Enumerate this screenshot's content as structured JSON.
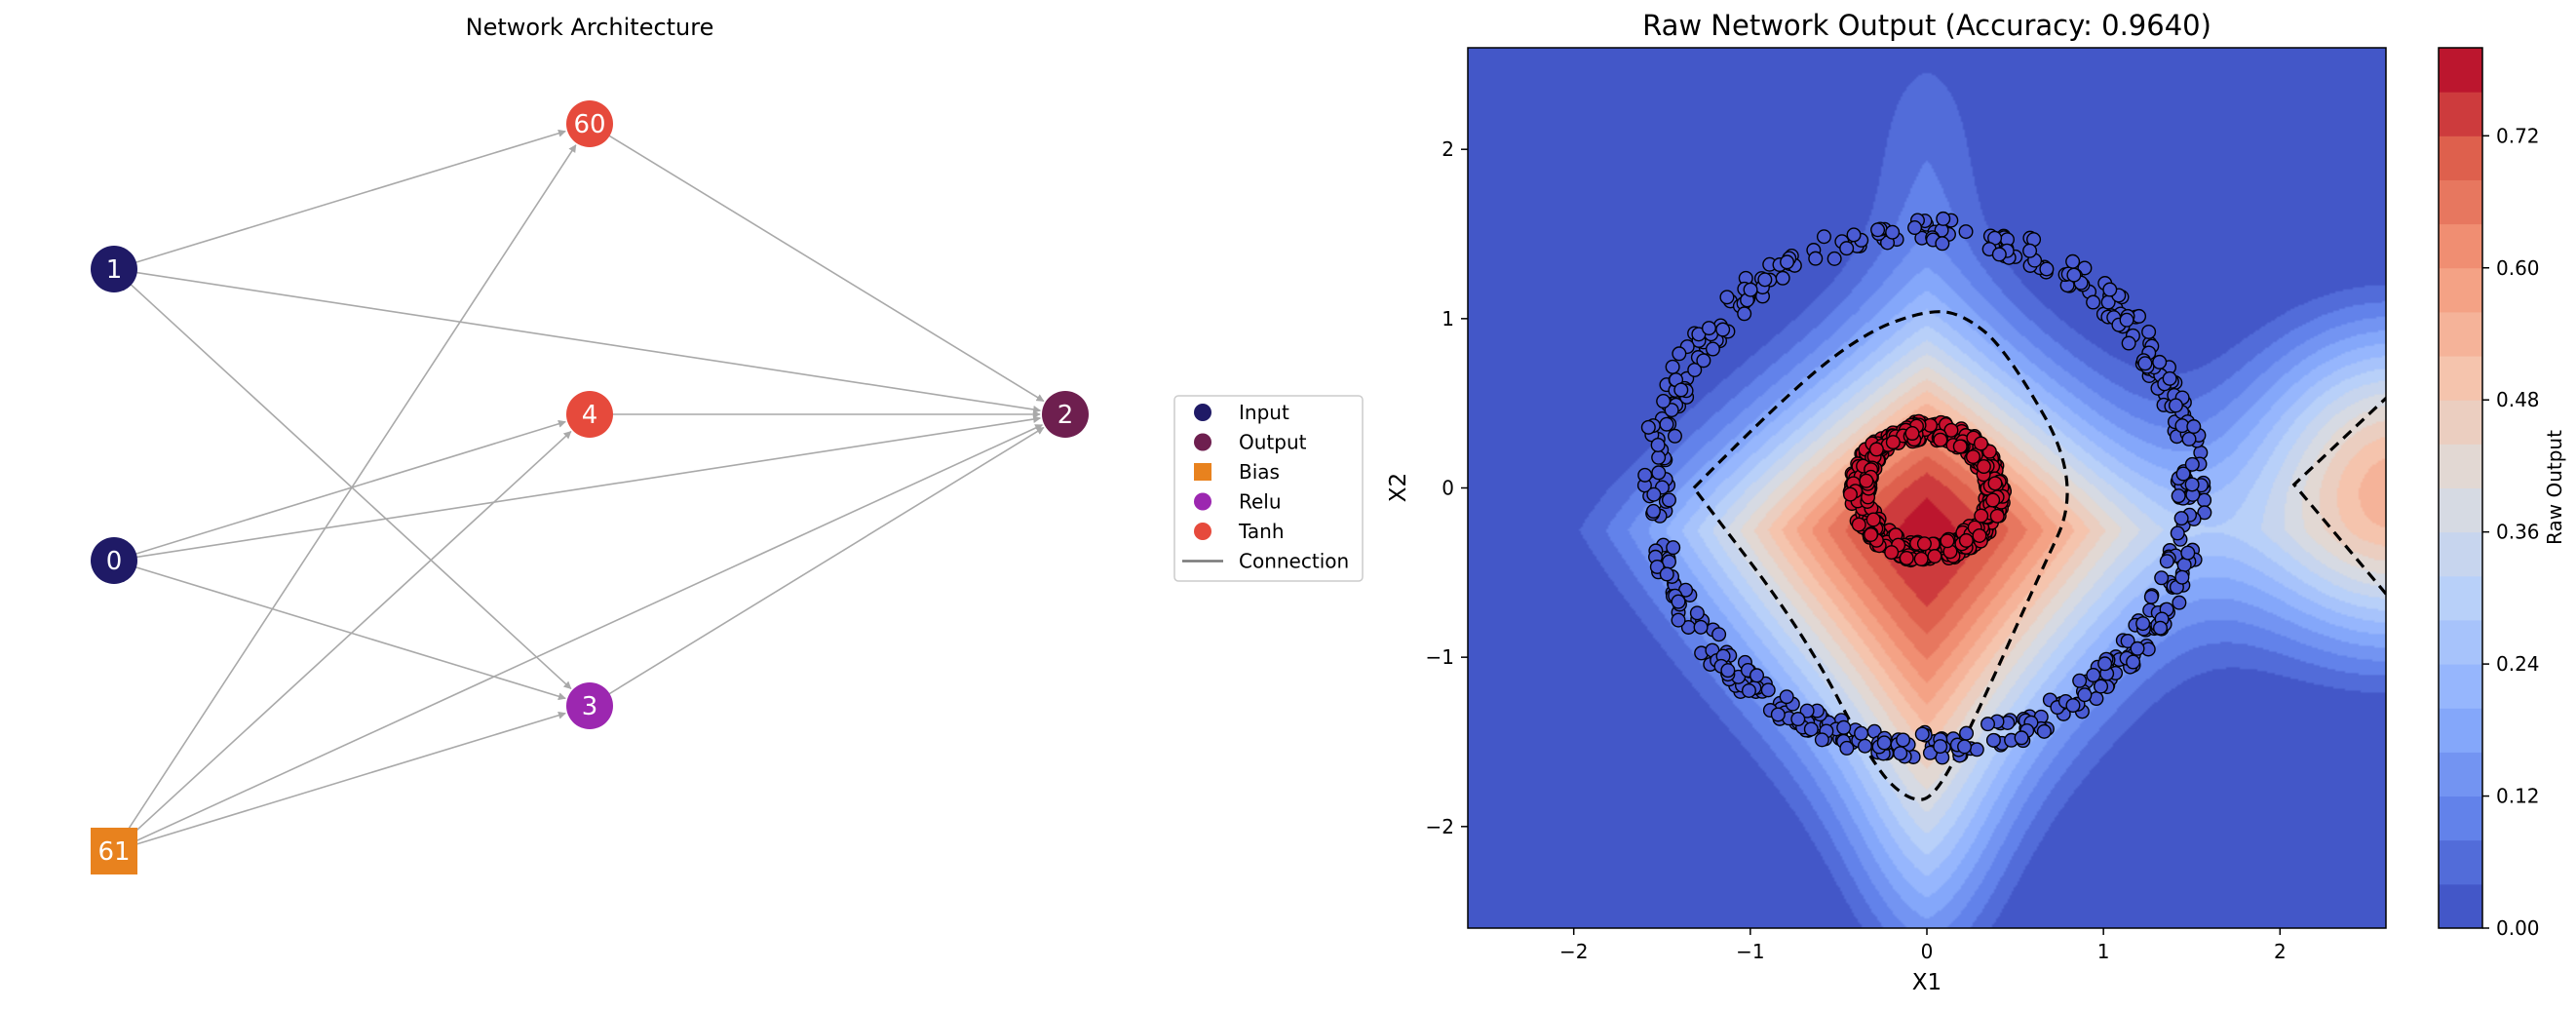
{
  "network": {
    "title": "Network Architecture",
    "colors": {
      "input": "#1f1a66",
      "output": "#6e1f4f",
      "bias": "#e8821e",
      "relu": "#9c27b0",
      "tanh": "#e64a3c",
      "connection": "#a9a9a9"
    },
    "nodes": [
      {
        "id": "1",
        "label": "1",
        "type": "input"
      },
      {
        "id": "0",
        "label": "0",
        "type": "input"
      },
      {
        "id": "61",
        "label": "61",
        "type": "bias"
      },
      {
        "id": "60",
        "label": "60",
        "type": "tanh"
      },
      {
        "id": "4",
        "label": "4",
        "type": "tanh"
      },
      {
        "id": "3",
        "label": "3",
        "type": "relu"
      },
      {
        "id": "2",
        "label": "2",
        "type": "output"
      }
    ],
    "edges": [
      [
        "1",
        "60"
      ],
      [
        "1",
        "2"
      ],
      [
        "1",
        "3"
      ],
      [
        "0",
        "4"
      ],
      [
        "0",
        "2"
      ],
      [
        "0",
        "3"
      ],
      [
        "61",
        "60"
      ],
      [
        "61",
        "4"
      ],
      [
        "61",
        "3"
      ],
      [
        "61",
        "2"
      ],
      [
        "60",
        "2"
      ],
      [
        "4",
        "2"
      ],
      [
        "3",
        "2"
      ]
    ],
    "legend": {
      "items": [
        {
          "label": "Input",
          "marker": "circle",
          "type": "input"
        },
        {
          "label": "Output",
          "marker": "circle",
          "type": "output"
        },
        {
          "label": "Bias",
          "marker": "square",
          "type": "bias"
        },
        {
          "label": "Relu",
          "marker": "circle",
          "type": "relu"
        },
        {
          "label": "Tanh",
          "marker": "circle",
          "type": "tanh"
        },
        {
          "label": "Connection",
          "marker": "line",
          "type": "connection"
        }
      ]
    }
  },
  "plot": {
    "title": "Raw Network Output (Accuracy: 0.9640)",
    "xlabel": "X1",
    "ylabel": "X2",
    "xlim": [
      -2.6,
      2.6
    ],
    "ylim": [
      -2.6,
      2.6
    ],
    "xticks": [
      -2,
      -1,
      0,
      1,
      2
    ],
    "yticks": [
      -2,
      -1,
      0,
      1,
      2
    ],
    "class_colors": {
      "outer": "#4a5bd4",
      "inner": "#c8102e"
    },
    "decision_boundary": {
      "style": "dashed",
      "color": "#000000"
    },
    "colorbar": {
      "label": "Raw Output",
      "ticks": [
        "0.00",
        "0.12",
        "0.24",
        "0.36",
        "0.48",
        "0.60",
        "0.72"
      ],
      "range": [
        0,
        0.8
      ],
      "cmap": "coolwarm"
    }
  }
}
